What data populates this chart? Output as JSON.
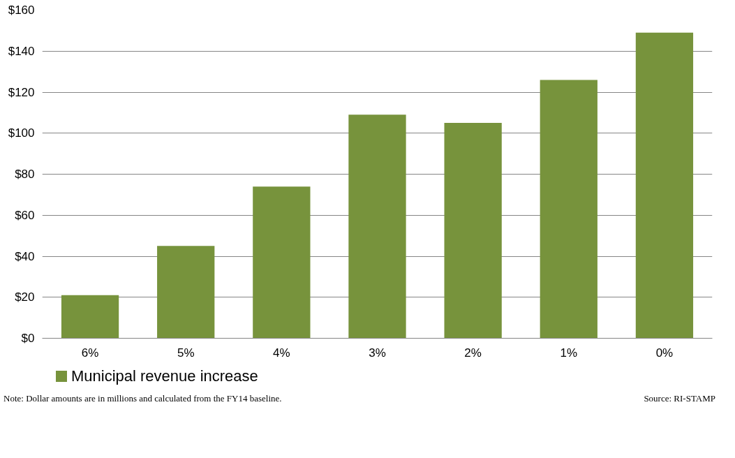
{
  "chart_data": {
    "type": "bar",
    "categories": [
      "6%",
      "5%",
      "4%",
      "3%",
      "2%",
      "1%",
      "0%"
    ],
    "series": [
      {
        "name": "Municipal revenue increase",
        "color": "#77933c",
        "values": [
          21,
          45,
          74,
          109,
          105,
          126,
          149
        ]
      }
    ],
    "ylim": [
      0,
      160
    ],
    "yticks": [
      {
        "value": 0,
        "label": "$0"
      },
      {
        "value": 20,
        "label": "$20"
      },
      {
        "value": 40,
        "label": "$40"
      },
      {
        "value": 60,
        "label": "$60"
      },
      {
        "value": 80,
        "label": "$80"
      },
      {
        "value": 100,
        "label": "$100"
      },
      {
        "value": 120,
        "label": "$120"
      },
      {
        "value": 140,
        "label": "$140"
      },
      {
        "value": 160,
        "label": "$160"
      }
    ],
    "grid": "y",
    "legend": "bottom",
    "annotations": [
      "Note: Dollar amounts are in millions and calculated from the FY14 baseline.",
      "Source: RI-STAMP"
    ]
  }
}
